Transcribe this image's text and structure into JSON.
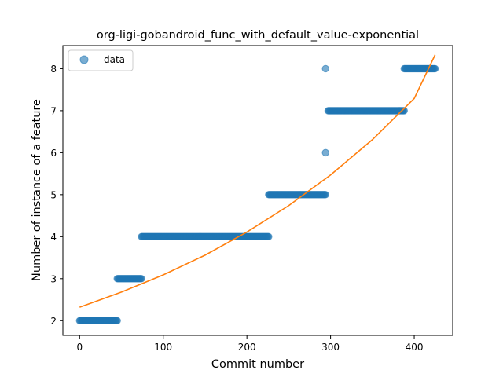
{
  "chart_data": {
    "type": "scatter",
    "title": "org-ligi-gobandroid_func_with_default_value-exponential",
    "xlabel": "Commit number",
    "ylabel": "Number of instance of a feature",
    "xlim": [
      -20,
      446
    ],
    "ylim": [
      1.65,
      8.55
    ],
    "xticks": [
      0,
      100,
      200,
      300,
      400
    ],
    "yticks": [
      2,
      3,
      4,
      5,
      6,
      7,
      8
    ],
    "grid": false,
    "legend": {
      "position": "top-left",
      "entries": [
        "data"
      ]
    },
    "colors": {
      "data": "#1f77b4",
      "fit": "#ff7f0e"
    },
    "series": [
      {
        "name": "data",
        "kind": "points",
        "runs": [
          {
            "x_start": 0,
            "x_end": 45,
            "y": 2
          },
          {
            "x_start": 45,
            "x_end": 74,
            "y": 3
          },
          {
            "x_start": 74,
            "x_end": 226,
            "y": 4
          },
          {
            "x_start": 226,
            "x_end": 294,
            "y": 5
          },
          {
            "x_start": 297,
            "x_end": 388,
            "y": 7
          },
          {
            "x_start": 388,
            "x_end": 425,
            "y": 8
          }
        ],
        "points": [
          {
            "x": 294,
            "y": 6
          },
          {
            "x": 294,
            "y": 8
          }
        ]
      },
      {
        "kind": "line",
        "x": [
          0,
          50,
          100,
          150,
          200,
          250,
          300,
          350,
          400,
          425
        ],
        "y": [
          2.32,
          2.68,
          3.09,
          3.56,
          4.11,
          4.74,
          5.47,
          6.31,
          7.29,
          8.33
        ]
      }
    ]
  }
}
